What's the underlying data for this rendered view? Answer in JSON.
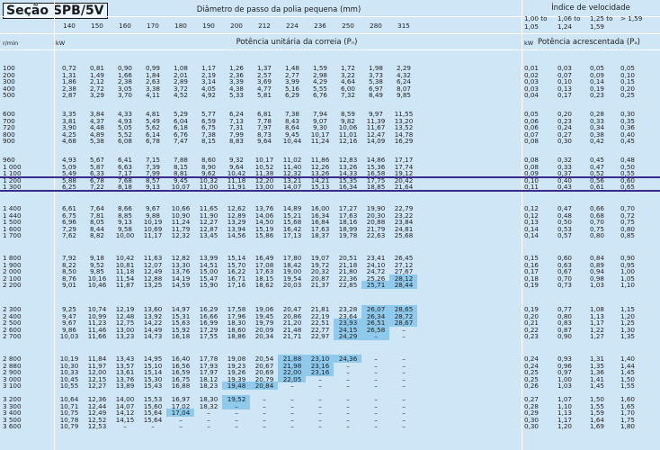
{
  "title": "Seção SPB/5V",
  "diameter_header": "Diâmetro de passo da polia pequena (mm)",
  "speed_index_header": "Índice de velocidade",
  "unit_power_header": "Potência unitária da correia (Pₙ)",
  "added_power_header": "Potência acrescentada (Pₐ)",
  "rpm_unit": "r/min",
  "kw_unit": "kW",
  "diameters": [
    "140",
    "150",
    "160",
    "170",
    "180",
    "190",
    "200",
    "212",
    "224",
    "236",
    "250",
    "280",
    "315"
  ],
  "ratio_ranges": [
    [
      "1,00 to",
      "1,05"
    ],
    [
      "1,06 to",
      "1,24"
    ],
    [
      "1,25 to",
      "1,59"
    ],
    [
      "> 1,59",
      ""
    ]
  ],
  "rows": [
    {
      "rpm": "100",
      "p": [
        "0,72",
        "0,81",
        "0,90",
        "0,99",
        "1,08",
        "1,17",
        "1,26",
        "1,37",
        "1,48",
        "1,59",
        "1,72",
        "1,98",
        "2,29"
      ],
      "a": [
        "0,01",
        "0,03",
        "0,05",
        "0,05"
      ]
    },
    {
      "rpm": "200",
      "p": [
        "1,31",
        "1,49",
        "1,66",
        "1,84",
        "2,01",
        "2,19",
        "2,36",
        "2,57",
        "2,77",
        "2,98",
        "3,22",
        "3,73",
        "4,32"
      ],
      "a": [
        "0,02",
        "0,07",
        "0,09",
        "0,10"
      ]
    },
    {
      "rpm": "300",
      "p": [
        "1,86",
        "2,12",
        "2,38",
        "2,63",
        "2,89",
        "3,14",
        "3,39",
        "3,69",
        "3,99",
        "4,29",
        "4,64",
        "5,38",
        "6,24"
      ],
      "a": [
        "0,03",
        "0,10",
        "0,14",
        "0,15"
      ]
    },
    {
      "rpm": "400",
      "p": [
        "2,38",
        "2,72",
        "3,05",
        "3,38",
        "3,72",
        "4,05",
        "4,38",
        "4,77",
        "5,16",
        "5,55",
        "6,00",
        "6,97",
        "8,07"
      ],
      "a": [
        "0,03",
        "0,13",
        "0,19",
        "0,20"
      ]
    },
    {
      "rpm": "500",
      "p": [
        "2,87",
        "3,29",
        "3,70",
        "4,11",
        "4,52",
        "4,92",
        "5,33",
        "5,81",
        "6,29",
        "6,76",
        "7,32",
        "8,49",
        "9,85"
      ],
      "a": [
        "0,04",
        "0,17",
        "0,23",
        "0,25"
      ]
    },
    {
      "rpm": "600",
      "p": [
        "3,35",
        "3,84",
        "4,33",
        "4,81",
        "5,29",
        "5,77",
        "6,24",
        "6,81",
        "7,38",
        "7,94",
        "8,59",
        "9,97",
        "11,55"
      ],
      "a": [
        "0,05",
        "0,20",
        "0,28",
        "0,30"
      ]
    },
    {
      "rpm": "700",
      "p": [
        "3,81",
        "4,37",
        "4,93",
        "5,49",
        "6,04",
        "6,59",
        "7,13",
        "7,78",
        "8,43",
        "9,07",
        "9,82",
        "11,39",
        "13,20"
      ],
      "a": [
        "0,06",
        "0,23",
        "0,33",
        "0,35"
      ]
    },
    {
      "rpm": "720",
      "p": [
        "3,90",
        "4,48",
        "5,05",
        "5,62",
        "6,18",
        "6,75",
        "7,31",
        "7,97",
        "8,64",
        "9,30",
        "10,06",
        "11,67",
        "13,52"
      ],
      "a": [
        "0,06",
        "0,24",
        "0,34",
        "0,36"
      ]
    },
    {
      "rpm": "800",
      "p": [
        "4,25",
        "4,89",
        "5,52",
        "6,14",
        "6,76",
        "7,38",
        "7,99",
        "8,73",
        "9,45",
        "10,17",
        "11,01",
        "12,47",
        "14,78"
      ],
      "a": [
        "0,07",
        "0,27",
        "0,38",
        "0,40"
      ]
    },
    {
      "rpm": "900",
      "p": [
        "4,68",
        "5,38",
        "6,08",
        "6,78",
        "7,47",
        "8,15",
        "8,83",
        "9,64",
        "10,44",
        "11,24",
        "12,16",
        "14,09",
        "16,29"
      ],
      "a": [
        "0,08",
        "0,30",
        "0,42",
        "0,45"
      ]
    },
    {
      "rpm": "960",
      "p": [
        "4,93",
        "5,67",
        "6,41",
        "7,15",
        "7,88",
        "8,60",
        "9,32",
        "10,17",
        "11,02",
        "11,86",
        "12,83",
        "14,86",
        "17,17"
      ],
      "a": [
        "0,08",
        "0,32",
        "0,45",
        "0,48"
      ]
    },
    {
      "rpm": "1 000",
      "p": [
        "5,09",
        "5,87",
        "6,63",
        "7,39",
        "8,15",
        "8,90",
        "9,64",
        "10,52",
        "11,40",
        "12,26",
        "13,26",
        "15,36",
        "17,74"
      ],
      "a": [
        "0,08",
        "0,33",
        "0,47",
        "0,50"
      ]
    },
    {
      "rpm": "1 100",
      "p": [
        "5,49",
        "6,33",
        "7,17",
        "7,99",
        "8,81",
        "9,62",
        "10,42",
        "11,38",
        "12,32",
        "13,26",
        "14,33",
        "16,58",
        "19,12"
      ],
      "a": [
        "0,09",
        "0,37",
        "0,52",
        "0,55"
      ]
    },
    {
      "rpm": "1 200",
      "p": [
        "5,88",
        "6,78",
        "7,68",
        "8,57",
        "9,45",
        "10,32",
        "11,18",
        "12,20",
        "13,21",
        "14,21",
        "15,35",
        "17,75",
        "20,42"
      ],
      "a": [
        "0,10",
        "0,40",
        "0,56",
        "0,60"
      ]
    },
    {
      "rpm": "1 300",
      "p": [
        "6,25",
        "7,22",
        "8,18",
        "9,13",
        "10,07",
        "11,00",
        "11,91",
        "13,00",
        "14,07",
        "15,13",
        "16,34",
        "18,85",
        "21,64"
      ],
      "a": [
        "0,11",
        "0,43",
        "0,61",
        "0,65"
      ]
    },
    {
      "rpm": "1 400",
      "p": [
        "6,61",
        "7,64",
        "8,66",
        "9,67",
        "10,66",
        "11,65",
        "12,62",
        "13,76",
        "14,89",
        "16,00",
        "17,27",
        "19,90",
        "22,79"
      ],
      "a": [
        "0,12",
        "0,47",
        "0,66",
        "0,70"
      ]
    },
    {
      "rpm": "1 440",
      "p": [
        "6,75",
        "7,81",
        "8,85",
        "9,88",
        "10,90",
        "11,90",
        "12,89",
        "14,06",
        "15,21",
        "16,34",
        "17,63",
        "20,30",
        "23,22"
      ],
      "a": [
        "0,12",
        "0,48",
        "0,68",
        "0,72"
      ]
    },
    {
      "rpm": "1 500",
      "p": [
        "6,96",
        "8,05",
        "9,13",
        "10,19",
        "11,24",
        "12,27",
        "13,29",
        "14,50",
        "15,68",
        "16,84",
        "18,16",
        "20,88",
        "23,84"
      ],
      "a": [
        "0,13",
        "0,50",
        "0,70",
        "0,75"
      ]
    },
    {
      "rpm": "1 600",
      "p": [
        "7,29",
        "8,44",
        "9,58",
        "10,69",
        "11,79",
        "12,87",
        "13,94",
        "15,19",
        "16,42",
        "17,63",
        "18,99",
        "21,79",
        "24,81"
      ],
      "a": [
        "0,14",
        "0,53",
        "0,75",
        "0,80"
      ]
    },
    {
      "rpm": "1 700",
      "p": [
        "7,62",
        "8,82",
        "10,00",
        "11,17",
        "12,32",
        "13,45",
        "14,56",
        "15,86",
        "17,13",
        "18,37",
        "19,78",
        "22,63",
        "25,68"
      ],
      "a": [
        "0,14",
        "0,57",
        "0,80",
        "0,85"
      ]
    },
    {
      "rpm": "1 800",
      "p": [
        "7,92",
        "9,18",
        "10,42",
        "11,63",
        "12,82",
        "13,99",
        "15,14",
        "16,49",
        "17,80",
        "19,07",
        "20,51",
        "23,41",
        "26,45"
      ],
      "a": [
        "0,15",
        "0,60",
        "0,84",
        "0,90"
      ]
    },
    {
      "rpm": "1 900",
      "p": [
        "8,22",
        "9,52",
        "10,81",
        "12,07",
        "13,30",
        "14,51",
        "15,70",
        "17,08",
        "18,42",
        "19,72",
        "21,18",
        "24,10",
        "27,12"
      ],
      "a": [
        "0,16",
        "0,63",
        "0,89",
        "0,95"
      ]
    },
    {
      "rpm": "2 000",
      "p": [
        "8,50",
        "9,85",
        "11,18",
        "12,49",
        "13,76",
        "15,00",
        "16,22",
        "17,63",
        "19,00",
        "20,32",
        "21,80",
        "24,72",
        "27,67"
      ],
      "a": [
        "0,17",
        "0,67",
        "0,94",
        "1,00"
      ]
    },
    {
      "rpm": "2 100",
      "p": [
        "8,76",
        "10,16",
        "11,54",
        "12,88",
        "14,19",
        "15,47",
        "16,71",
        "18,15",
        "19,54",
        "20,87",
        "22,36",
        "25,26",
        "28,12"
      ],
      "a": [
        "0,18",
        "0,70",
        "0,98",
        "1,05"
      ]
    },
    {
      "rpm": "2 200",
      "p": [
        "9,01",
        "10,46",
        "11,87",
        "13,25",
        "14,59",
        "15,90",
        "17,16",
        "18,62",
        "20,03",
        "21,37",
        "22,85",
        "25,71",
        "28,44"
      ],
      "a": [
        "0,19",
        "0,73",
        "1,03",
        "1,10"
      ]
    },
    {
      "rpm": "2 300",
      "p": [
        "9,25",
        "10,74",
        "12,19",
        "13,60",
        "14,97",
        "16,29",
        "17,58",
        "19,06",
        "20,47",
        "21,81",
        "23,28",
        "26,07",
        "28,65"
      ],
      "a": [
        "0,19",
        "0,77",
        "1,08",
        "1,15"
      ]
    },
    {
      "rpm": "2 400",
      "p": [
        "9,47",
        "10,99",
        "12,48",
        "13,92",
        "15,31",
        "16,66",
        "17,96",
        "19,45",
        "20,86",
        "22,19",
        "23,64",
        "26,34",
        "28,72"
      ],
      "a": [
        "0,20",
        "0,80",
        "1,13",
        "1,20"
      ]
    },
    {
      "rpm": "2 500",
      "p": [
        "9,67",
        "11,23",
        "12,75",
        "14,22",
        "15,63",
        "16,99",
        "18,30",
        "19,79",
        "21,20",
        "22,51",
        "23,93",
        "26,51",
        "28,67"
      ],
      "a": [
        "0,21",
        "0,83",
        "1,17",
        "1,25"
      ]
    },
    {
      "rpm": "2 600",
      "p": [
        "9,86",
        "11,46",
        "13,00",
        "14,49",
        "15,92",
        "17,29",
        "18,60",
        "20,09",
        "21,48",
        "22,77",
        "24,15",
        "26,58",
        "–"
      ],
      "a": [
        "0,22",
        "0,87",
        "1,22",
        "1,30"
      ]
    },
    {
      "rpm": "2 700",
      "p": [
        "10,03",
        "11,66",
        "13,23",
        "14,73",
        "16,18",
        "17,55",
        "18,86",
        "20,34",
        "21,71",
        "22,97",
        "24,29",
        "–",
        "–"
      ],
      "a": [
        "0,23",
        "0,90",
        "1,27",
        "1,35"
      ]
    },
    {
      "rpm": "2 800",
      "p": [
        "10,19",
        "11,84",
        "13,43",
        "14,95",
        "16,40",
        "17,78",
        "19,08",
        "20,54",
        "21,88",
        "23,10",
        "24,36",
        "–",
        "–"
      ],
      "a": [
        "0,24",
        "0,93",
        "1,31",
        "1,40"
      ]
    },
    {
      "rpm": "2 880",
      "p": [
        "10,30",
        "11,97",
        "13,57",
        "15,10",
        "16,56",
        "17,93",
        "19,23",
        "20,67",
        "21,98",
        "23,16",
        "–",
        "–",
        "–"
      ],
      "a": [
        "0,24",
        "0,96",
        "1,35",
        "1,44"
      ]
    },
    {
      "rpm": "2 900",
      "p": [
        "10,33",
        "12,00",
        "13,61",
        "15,14",
        "16,59",
        "17,97",
        "19,26",
        "20,69",
        "22,00",
        "23,16",
        "–",
        "–",
        "–"
      ],
      "a": [
        "0,25",
        "0,97",
        "1,36",
        "1,45"
      ]
    },
    {
      "rpm": "3 000",
      "p": [
        "10,45",
        "12,15",
        "13,76",
        "15,30",
        "16,75",
        "18,12",
        "19,39",
        "20,79",
        "22,05",
        "–",
        "–",
        "–",
        "–"
      ],
      "a": [
        "0,25",
        "1,00",
        "1,41",
        "1,50"
      ]
    },
    {
      "rpm": "3 100",
      "p": [
        "10,55",
        "12,27",
        "13,89",
        "15,43",
        "16,88",
        "18,23",
        "19,48",
        "20,84",
        "–",
        "–",
        "–",
        "–",
        "–"
      ],
      "a": [
        "0,26",
        "1,03",
        "1,45",
        "1,55"
      ]
    },
    {
      "rpm": "3 200",
      "p": [
        "10,64",
        "12,36",
        "14,00",
        "15,53",
        "16,97",
        "18,30",
        "19,52",
        "–",
        "–",
        "–",
        "–",
        "–",
        "–"
      ],
      "a": [
        "0,27",
        "1,07",
        "1,50",
        "1,60"
      ]
    },
    {
      "rpm": "3 300",
      "p": [
        "10,71",
        "12,44",
        "14,07",
        "15,60",
        "17,02",
        "18,32",
        "–",
        "–",
        "–",
        "–",
        "–",
        "–",
        "–"
      ],
      "a": [
        "0,28",
        "1,10",
        "1,55",
        "1,65"
      ]
    },
    {
      "rpm": "3 400",
      "p": [
        "10,75",
        "12,49",
        "14,12",
        "15,64",
        "17,04",
        "–",
        "–",
        "–",
        "–",
        "–",
        "–",
        "–",
        "–"
      ],
      "a": [
        "0,29",
        "1,13",
        "1,59",
        "1,70"
      ]
    },
    {
      "rpm": "3 500",
      "p": [
        "10,78",
        "12,52",
        "14,15",
        "15,64",
        "–",
        "–",
        "–",
        "–",
        "–",
        "–",
        "–",
        "–",
        "–"
      ],
      "a": [
        "0,30",
        "1,17",
        "1,64",
        "1,75"
      ]
    },
    {
      "rpm": "3 600",
      "p": [
        "10,79",
        "12,53",
        "–",
        "–",
        "–",
        "–",
        "–",
        "–",
        "–",
        "–",
        "–",
        "–",
        "–"
      ],
      "a": [
        "0,30",
        "1,20",
        "1,69",
        "1,80"
      ]
    }
  ],
  "highlighted_cells": [
    [
      23,
      12
    ],
    [
      24,
      11
    ],
    [
      24,
      12
    ],
    [
      25,
      11
    ],
    [
      25,
      12
    ],
    [
      26,
      11
    ],
    [
      26,
      12
    ],
    [
      27,
      10
    ],
    [
      27,
      11
    ],
    [
      27,
      12
    ],
    [
      28,
      10
    ],
    [
      28,
      11
    ],
    [
      29,
      10
    ],
    [
      29,
      11
    ],
    [
      30,
      8
    ],
    [
      30,
      9
    ],
    [
      30,
      10
    ],
    [
      31,
      8
    ],
    [
      31,
      9
    ],
    [
      32,
      8
    ],
    [
      32,
      9
    ],
    [
      33,
      8
    ],
    [
      34,
      6
    ],
    [
      34,
      7
    ],
    [
      35,
      6
    ],
    [
      36,
      6
    ],
    [
      37,
      4
    ]
  ],
  "colors": {
    "background": "#cfe6f7",
    "highlight": "#8fc9ec",
    "marker_line": "#3a2a8c"
  }
}
